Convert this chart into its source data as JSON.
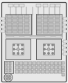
{
  "bg_color": "#f0f0f0",
  "outer_bg": "#e8e8e8",
  "border_color": "#444444",
  "block_face": "#d0d0d0",
  "block_edge": "#555555",
  "cell_face": "#c0c0c0",
  "cell_edge": "#777777",
  "lower_block_face": "#d8d8d8",
  "lower_center_face": "#e4e4e4",
  "strip_face": "#c8c8c8",
  "strip_edge": "#666666",
  "label_face": "#e2e2e2",
  "label_edge": "#888888",
  "line_color": "#666666",
  "white": "#ffffff"
}
